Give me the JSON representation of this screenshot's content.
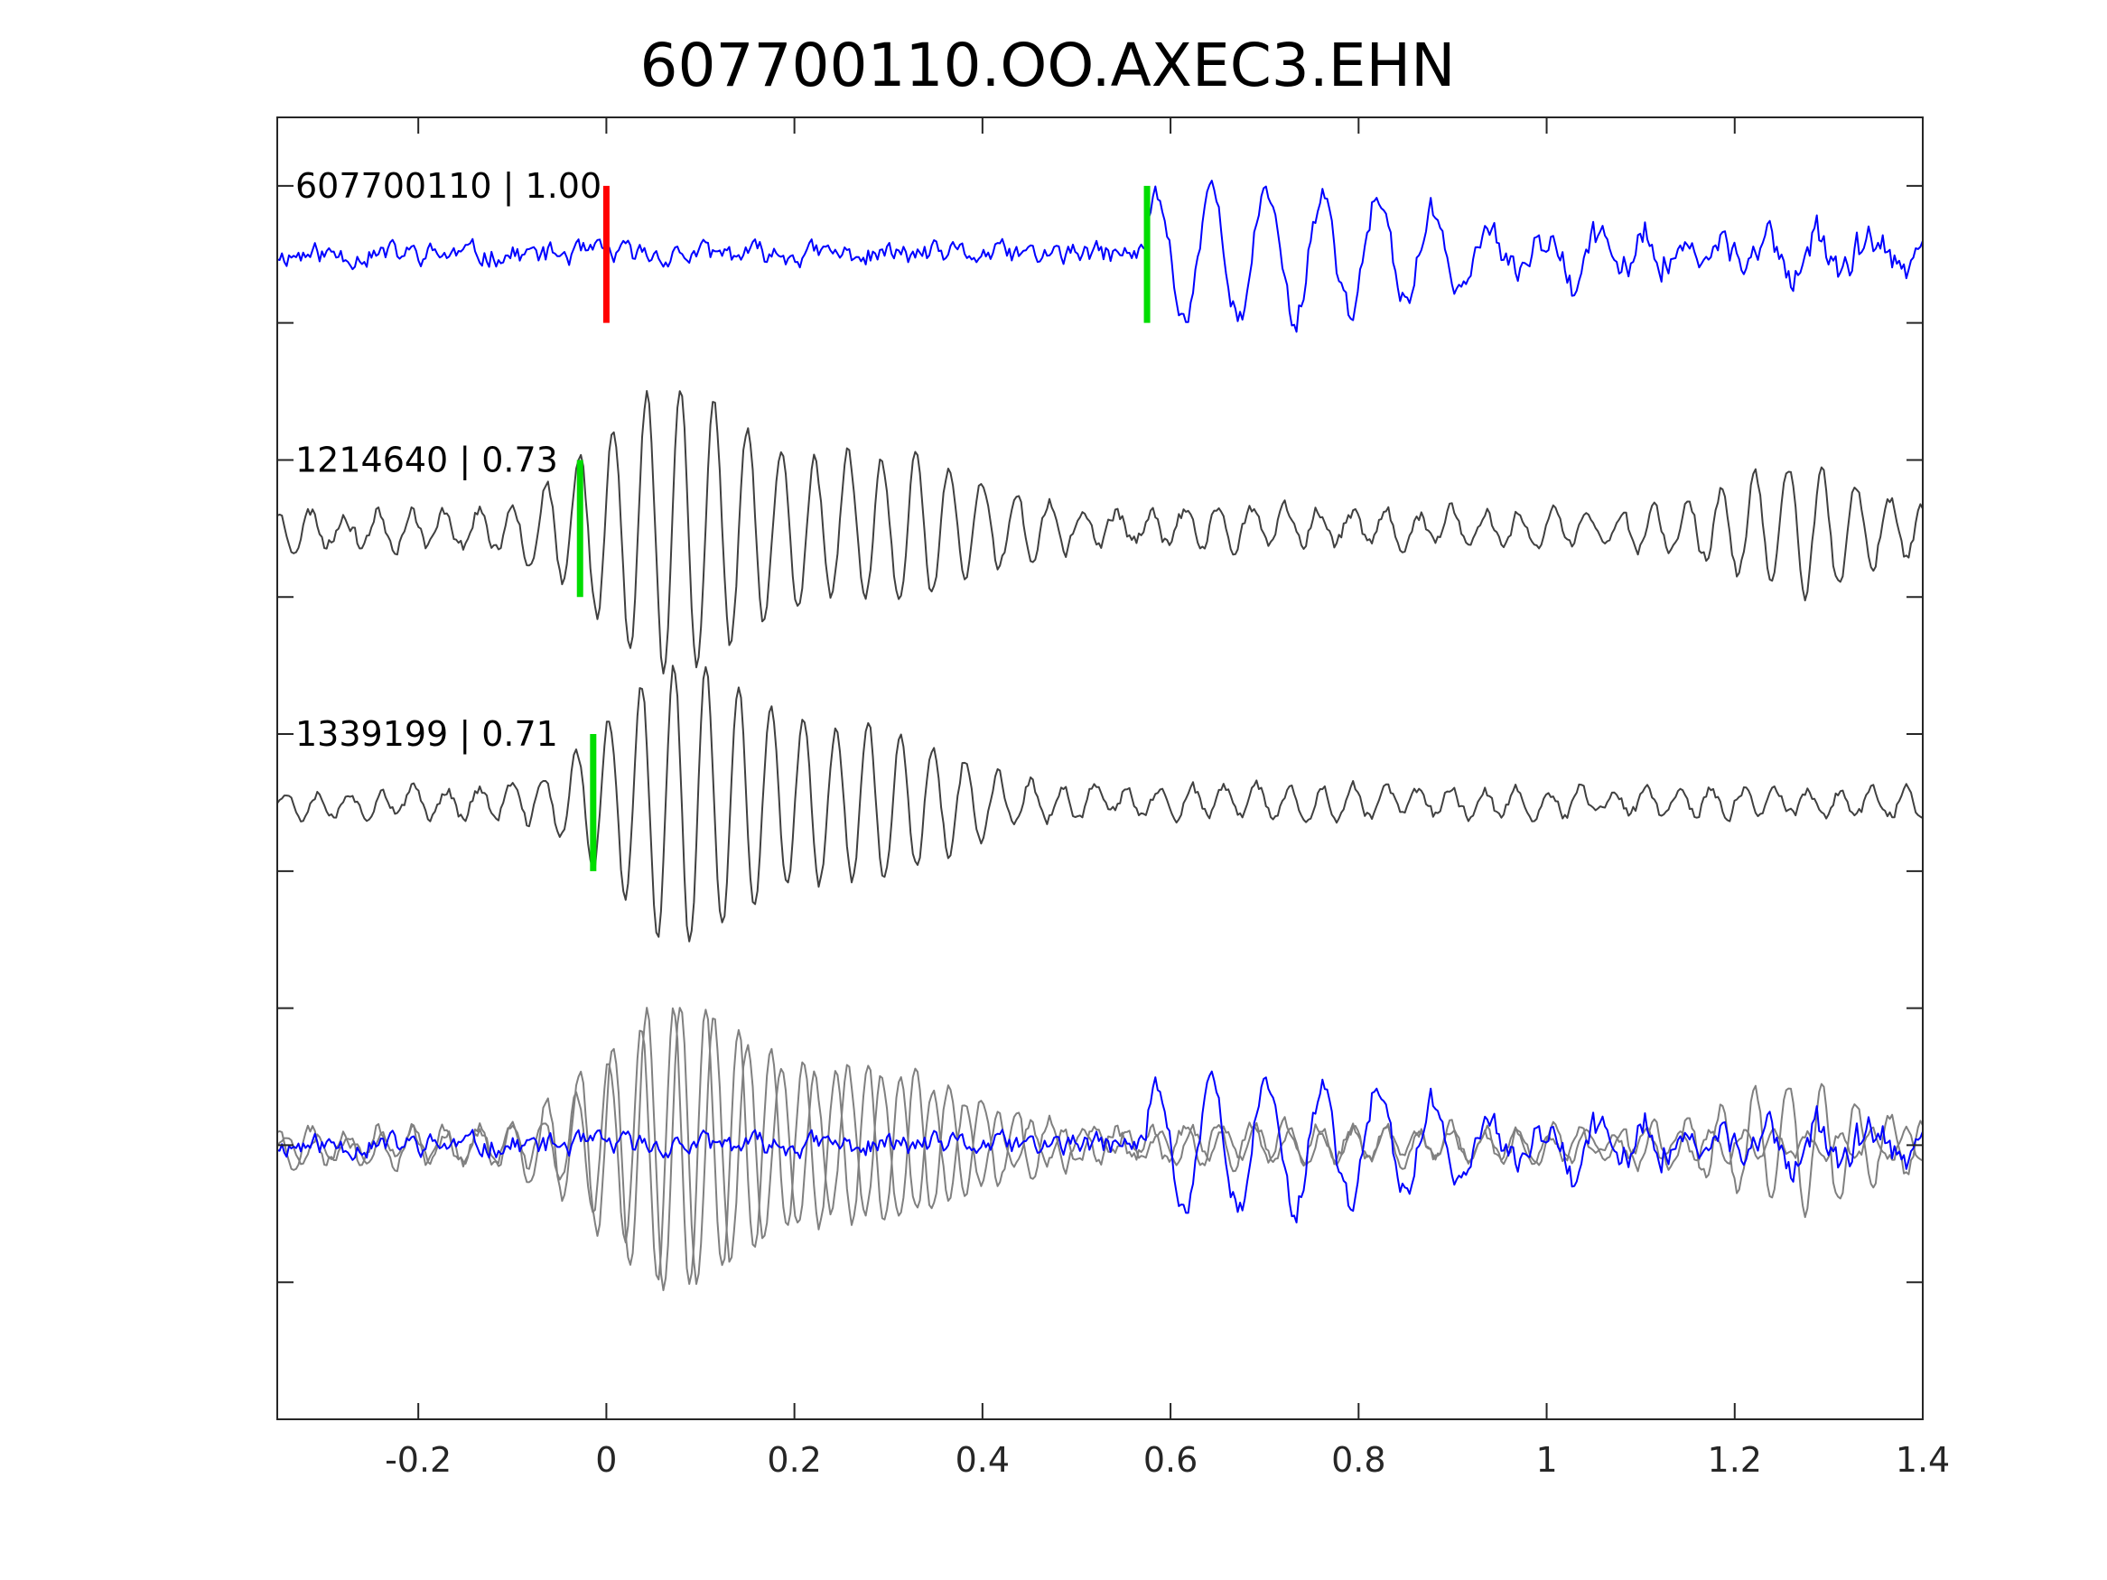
{
  "chart_data": {
    "type": "line",
    "title": "607700110.OO.AXEC3.EHN",
    "xlabel": "",
    "ylabel": "",
    "xlim": [
      -0.35,
      1.4
    ],
    "x_ticks": [
      "-0.2",
      "0",
      "0.2",
      "0.4",
      "0.6",
      "0.8",
      "1",
      "1.2",
      "1.4"
    ],
    "x_tick_values": [
      -0.2,
      0,
      0.2,
      0.4,
      0.6,
      0.8,
      1.0,
      1.2,
      1.4
    ],
    "ylim": [
      -0.5,
      4.25
    ],
    "y_tick_values": [
      0,
      0.5,
      1,
      1.5,
      2,
      2.5,
      3,
      3.5,
      4
    ],
    "y_tick_labels_shown": false,
    "grid": false,
    "traces": [
      {
        "label": "607700110 | 1.00",
        "offset": 3.75,
        "color": "#0000ff",
        "style": "blue-event",
        "picks": [
          {
            "x": 0.0,
            "color": "#ff0000",
            "half_height": 0.25
          },
          {
            "x": 0.575,
            "color": "#00dd00",
            "half_height": 0.25
          }
        ]
      },
      {
        "label": "1214640 | 0.73",
        "offset": 2.75,
        "color": "#404040",
        "style": "gray-burst-a",
        "picks": [
          {
            "x": -0.028,
            "color": "#00dd00",
            "half_height": 0.25
          }
        ]
      },
      {
        "label": "1339199 | 0.71",
        "offset": 1.75,
        "color": "#404040",
        "style": "gray-burst-b",
        "picks": [
          {
            "x": -0.014,
            "color": "#00dd00",
            "half_height": 0.25
          }
        ]
      }
    ],
    "overlay": {
      "offset": 0.5,
      "gray_color": "#808080",
      "blue_color": "#0000ff"
    },
    "colors": {
      "event_trace": "#0000ff",
      "template_trace": "#404040",
      "overlay_gray": "#808080",
      "reference_pick": "#ff0000",
      "matched_pick": "#00dd00",
      "axes": "#262626"
    }
  }
}
